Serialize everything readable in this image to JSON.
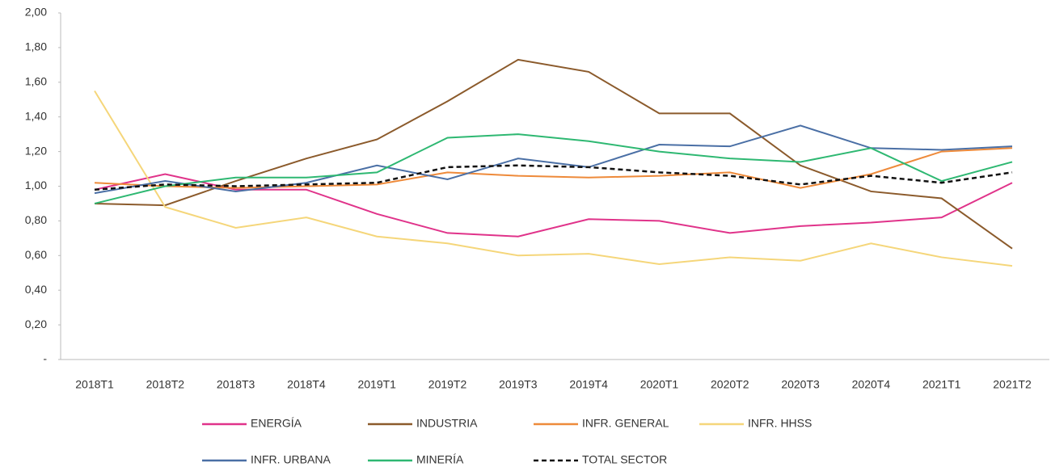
{
  "chart_data": {
    "type": "line",
    "categories": [
      "2018T1",
      "2018T2",
      "2018T3",
      "2018T4",
      "2019T1",
      "2019T2",
      "2019T3",
      "2019T4",
      "2020T1",
      "2020T2",
      "2020T3",
      "2020T4",
      "2021T1",
      "2021T2"
    ],
    "series": [
      {
        "name": "ENERGÍA",
        "color": "#e0338a",
        "values": [
          0.98,
          1.07,
          0.98,
          0.98,
          0.84,
          0.73,
          0.71,
          0.81,
          0.8,
          0.73,
          0.77,
          0.79,
          0.82,
          1.02
        ]
      },
      {
        "name": "INDUSTRIA",
        "color": "#8b5a2b",
        "values": [
          0.9,
          0.89,
          1.03,
          1.16,
          1.27,
          1.49,
          1.73,
          1.66,
          1.42,
          1.42,
          1.12,
          0.97,
          0.93,
          0.64
        ]
      },
      {
        "name": "INFR. GENERAL",
        "color": "#ee8a3a",
        "values": [
          1.02,
          1.0,
          0.99,
          1.0,
          1.01,
          1.08,
          1.06,
          1.05,
          1.06,
          1.08,
          0.99,
          1.07,
          1.2,
          1.22
        ]
      },
      {
        "name": "INFR. HHSS",
        "color": "#f5d67a",
        "values": [
          1.55,
          0.88,
          0.76,
          0.82,
          0.71,
          0.67,
          0.6,
          0.61,
          0.55,
          0.59,
          0.57,
          0.67,
          0.59,
          0.54
        ]
      },
      {
        "name": "INFR. URBANA",
        "color": "#4a6fa5",
        "values": [
          0.96,
          1.03,
          0.97,
          1.02,
          1.12,
          1.04,
          1.16,
          1.11,
          1.24,
          1.23,
          1.35,
          1.22,
          1.21,
          1.23
        ]
      },
      {
        "name": "MINERÍA",
        "color": "#2eb872",
        "values": [
          0.9,
          1.0,
          1.05,
          1.05,
          1.08,
          1.28,
          1.3,
          1.26,
          1.2,
          1.16,
          1.14,
          1.22,
          1.03,
          1.14
        ]
      },
      {
        "name": "TOTAL SECTOR",
        "color": "#111111",
        "dashed": true,
        "values": [
          0.98,
          1.01,
          1.0,
          1.01,
          1.02,
          1.11,
          1.12,
          1.11,
          1.08,
          1.06,
          1.01,
          1.06,
          1.02,
          1.08
        ]
      }
    ],
    "ylim": [
      0,
      2
    ],
    "yticks": [
      {
        "value": 0,
        "label": "-"
      },
      {
        "value": 0.2,
        "label": "0,20"
      },
      {
        "value": 0.4,
        "label": "0,40"
      },
      {
        "value": 0.6,
        "label": "0,60"
      },
      {
        "value": 0.8,
        "label": "0,80"
      },
      {
        "value": 1,
        "label": "1,00"
      },
      {
        "value": 1.2,
        "label": "1,20"
      },
      {
        "value": 1.4,
        "label": "1,40"
      },
      {
        "value": 1.6,
        "label": "1,60"
      },
      {
        "value": 1.8,
        "label": "1,80"
      },
      {
        "value": 2,
        "label": "2,00"
      }
    ]
  }
}
